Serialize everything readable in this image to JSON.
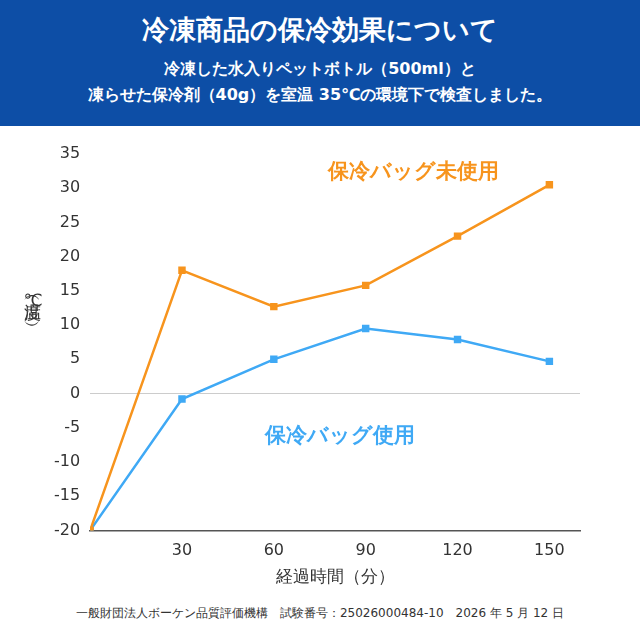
{
  "chart_data": {
    "type": "line",
    "title": "冷凍商品の保冷効果について",
    "subtitle": [
      "冷凍した水入りペットボトル（500ml）と",
      "凍らせた保冷剤（40g）を室温 35℃の環境下で検査しました。"
    ],
    "x_label": "経過時間（分）",
    "y_label": "温度（℃）",
    "footer": "一般財団法人ボーケン品質評価機構　試験番号：25026000484-10　2026 年 5 月 12 日",
    "x": [
      0,
      30,
      60,
      90,
      120,
      150
    ],
    "series": [
      {
        "name": "保冷バッグ未使用",
        "color": "#f7941d",
        "marker": "square",
        "values": [
          -20,
          18,
          12.7,
          15.8,
          23,
          30.5
        ]
      },
      {
        "name": "保冷バッグ使用",
        "color": "#3fa9f5",
        "marker": "square",
        "values": [
          -20,
          -0.8,
          5,
          9.5,
          7.9,
          4.7
        ]
      }
    ],
    "xlim": [
      0,
      160
    ],
    "xticks": [
      30,
      60,
      90,
      120,
      150
    ],
    "ylim": [
      -20,
      35
    ],
    "yticks": [
      -20,
      -15,
      -10,
      -5,
      0,
      5,
      10,
      15,
      20,
      25,
      30,
      35
    ],
    "grid": false
  }
}
